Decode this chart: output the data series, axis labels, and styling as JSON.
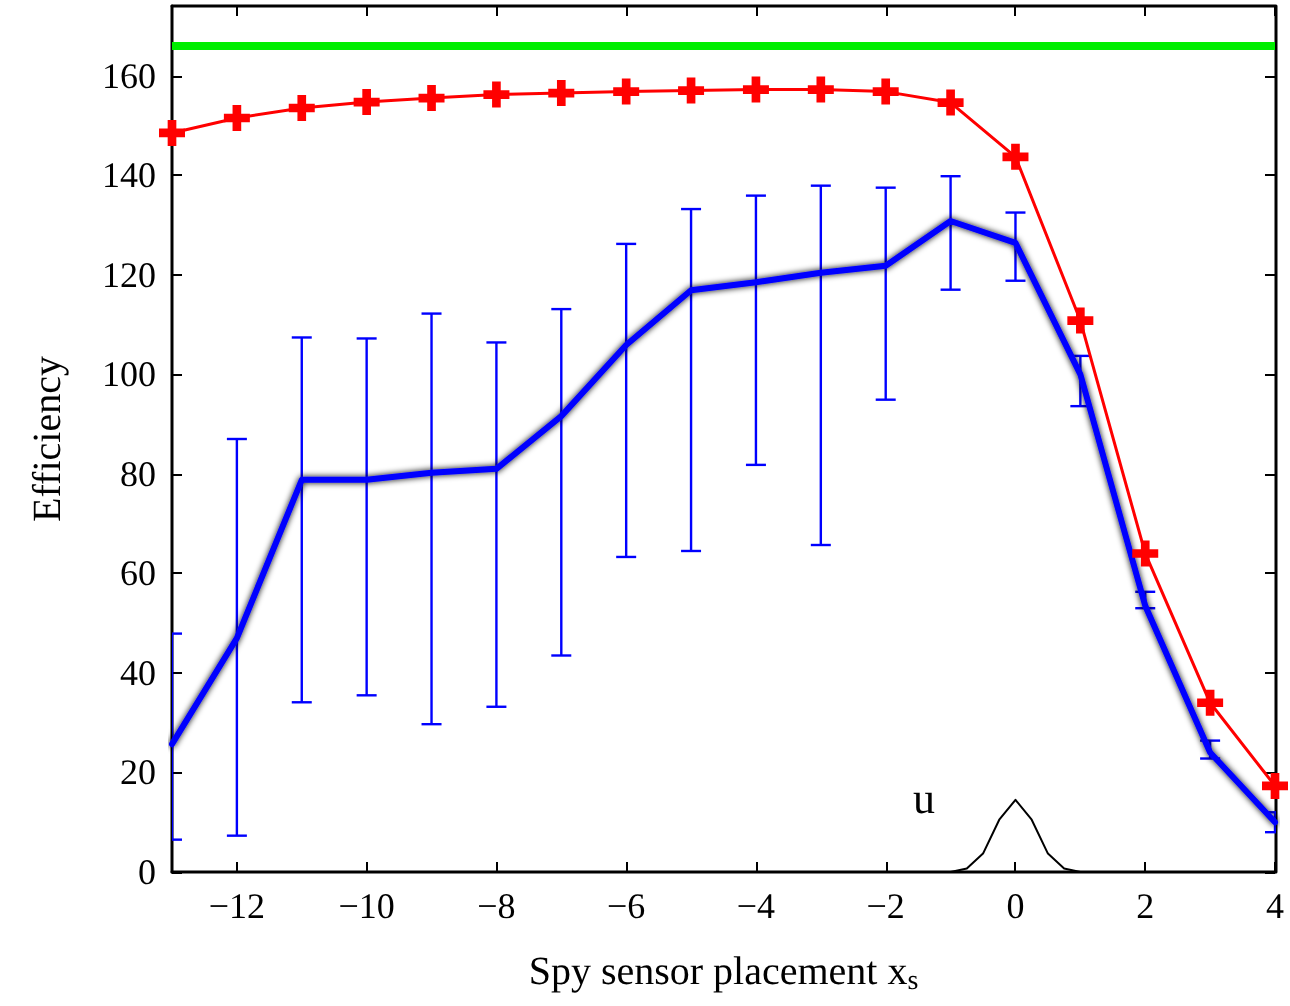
{
  "chart_data": {
    "type": "line",
    "xlabel": "Spy sensor placement x$_{s}$",
    "ylabel": "Efficiency",
    "x": [
      -13,
      -12,
      -11,
      -10,
      -9,
      -8,
      -7,
      -6,
      -5,
      -4,
      -3,
      -2,
      -1,
      0,
      1,
      2,
      3,
      4
    ],
    "series": [
      {
        "color": "#ff0000",
        "marker": "cross",
        "values": [
          148.5,
          151.5,
          153.5,
          154.7,
          155.5,
          156.2,
          156.5,
          156.8,
          157,
          157.2,
          157.2,
          156.8,
          154.6,
          143.7,
          110.8,
          64,
          34,
          17.3
        ]
      },
      {
        "color": "#0000ff",
        "marker": "none",
        "values": [
          25.7,
          47,
          78.8,
          78.8,
          80.2,
          81,
          91.6,
          105.9,
          116.9,
          118.5,
          120.4,
          121.8,
          130.8,
          126.4,
          100,
          53.5,
          24,
          10
        ],
        "errors": [
          [
            6.5,
            47.9
          ],
          [
            7.3,
            87
          ],
          [
            34.1,
            107.4
          ],
          [
            35.5,
            107.2
          ],
          [
            29.7,
            112.2
          ],
          [
            33.2,
            106.4
          ],
          [
            43.5,
            113.1
          ],
          [
            63.3,
            126.2
          ],
          [
            64.5,
            133.2
          ],
          [
            81.8,
            135.9
          ],
          [
            65.7,
            137.9
          ],
          [
            94.9,
            137.5
          ],
          [
            117,
            139.8
          ],
          [
            118.8,
            132.5
          ],
          [
            93.6,
            103.7
          ],
          [
            53,
            56.3
          ],
          [
            22.8,
            26.4
          ],
          [
            8,
            12
          ]
        ]
      },
      {
        "color": "#000000",
        "marker": "none",
        "x": [
          -1,
          -0.75,
          -0.5,
          -0.25,
          0,
          0.25,
          0.5,
          0.75,
          1
        ],
        "values": [
          0,
          0.7,
          3.7,
          10.5,
          14.5,
          10.5,
          3.7,
          0.7,
          0
        ]
      }
    ],
    "ref_lines": [
      {
        "axis": "y",
        "value": 166,
        "color": "#00ee00"
      }
    ],
    "annotations": [
      "u"
    ],
    "xlim": [
      -13,
      4
    ],
    "xticks": [
      {
        "value": -12,
        "label": "−12"
      },
      {
        "value": -10,
        "label": "−10"
      },
      {
        "value": -8,
        "label": "−8"
      },
      {
        "value": -6,
        "label": "−6"
      },
      {
        "value": -4,
        "label": "−4"
      },
      {
        "value": -2,
        "label": "−2"
      },
      0,
      2,
      4
    ],
    "ylim": [
      0,
      174
    ],
    "yticks": [
      0,
      20,
      40,
      60,
      80,
      100,
      120,
      140,
      160
    ],
    "grid": false
  }
}
